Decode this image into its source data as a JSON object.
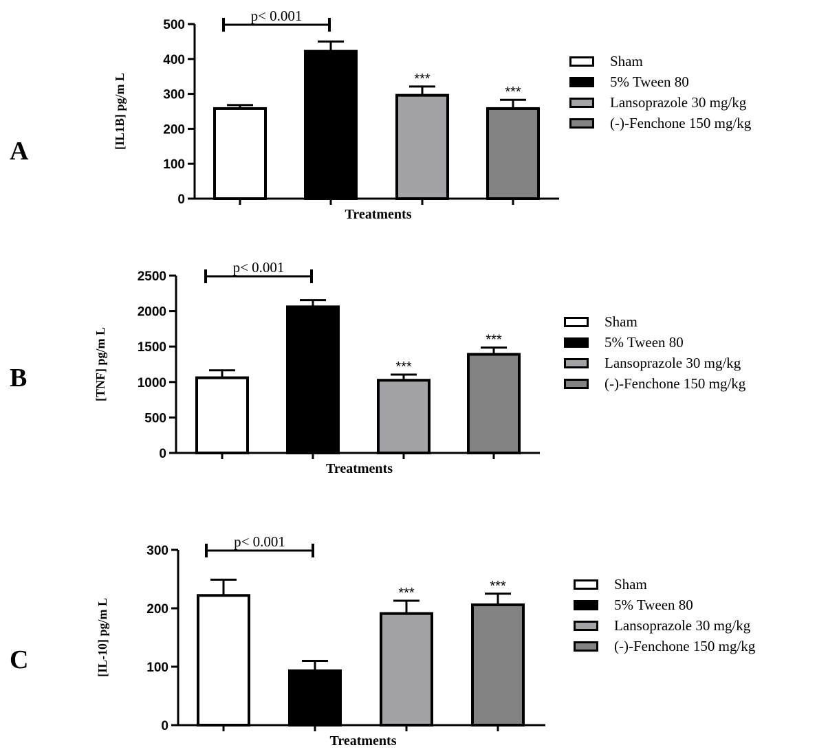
{
  "figure": {
    "panel_letters": [
      "A",
      "B",
      "C"
    ],
    "colors": {
      "sham": "#ffffff",
      "tween": "#000000",
      "lansoprazole": "#a3a3a7",
      "fenchone": "#838383",
      "stroke": "#000000"
    }
  },
  "chart_data": [
    {
      "type": "bar",
      "panel": "A",
      "title": "",
      "xlabel": "Treatments",
      "ylabel": "[IL1B] pg/m L",
      "ylim": [
        0,
        500
      ],
      "yticks": [
        0,
        100,
        200,
        300,
        400,
        500
      ],
      "categories": [
        "Sham",
        "5% Tween 80",
        "Lansoprazole 30 mg/kg",
        "(-)-Fenchone 150 mg/kg"
      ],
      "values": [
        258,
        422,
        296,
        258
      ],
      "errors": [
        10,
        28,
        25,
        25
      ],
      "annotations": [
        "",
        "",
        "***",
        "***"
      ],
      "bracket": {
        "label": "p< 0.001",
        "from": 0,
        "to": 1
      },
      "legend": [
        "Sham",
        "5% Tween 80",
        "Lansoprazole 30 mg/kg",
        "(-)-Fenchone 150 mg/kg"
      ]
    },
    {
      "type": "bar",
      "panel": "B",
      "title": "",
      "xlabel": "Treatments",
      "ylabel": "[TNF] pg/m L",
      "ylim": [
        0,
        2500
      ],
      "yticks": [
        0,
        500,
        1000,
        1500,
        2000,
        2500
      ],
      "categories": [
        "Sham",
        "5% Tween 80",
        "Lansoprazole 30 mg/kg",
        "(-)-Fenchone 150 mg/kg"
      ],
      "values": [
        1060,
        2060,
        1025,
        1390
      ],
      "errors": [
        105,
        95,
        80,
        95
      ],
      "annotations": [
        "",
        "",
        "***",
        "***"
      ],
      "bracket": {
        "label": "p< 0.001",
        "from": 0,
        "to": 1
      },
      "legend": [
        "Sham",
        "5% Tween 80",
        "Lansoprazole 30 mg/kg",
        "(-)-Fenchone 150 mg/kg"
      ]
    },
    {
      "type": "bar",
      "panel": "C",
      "title": "",
      "xlabel": "Treatments",
      "ylabel": "[IL-10] pg/m L",
      "ylim": [
        0,
        300
      ],
      "yticks": [
        0,
        100,
        200,
        300
      ],
      "categories": [
        "Sham",
        "5% Tween 80",
        "Lansoprazole 30 mg/kg",
        "(-)-Fenchone 150 mg/kg"
      ],
      "values": [
        222,
        93,
        191,
        206
      ],
      "errors": [
        27,
        17,
        22,
        19
      ],
      "annotations": [
        "",
        "",
        "***",
        "***"
      ],
      "bracket": {
        "label": "p< 0.001",
        "from": 0,
        "to": 1
      },
      "legend": [
        "Sham",
        "5% Tween 80",
        "Lansoprazole 30 mg/kg",
        "(-)-Fenchone 150 mg/kg"
      ]
    }
  ]
}
